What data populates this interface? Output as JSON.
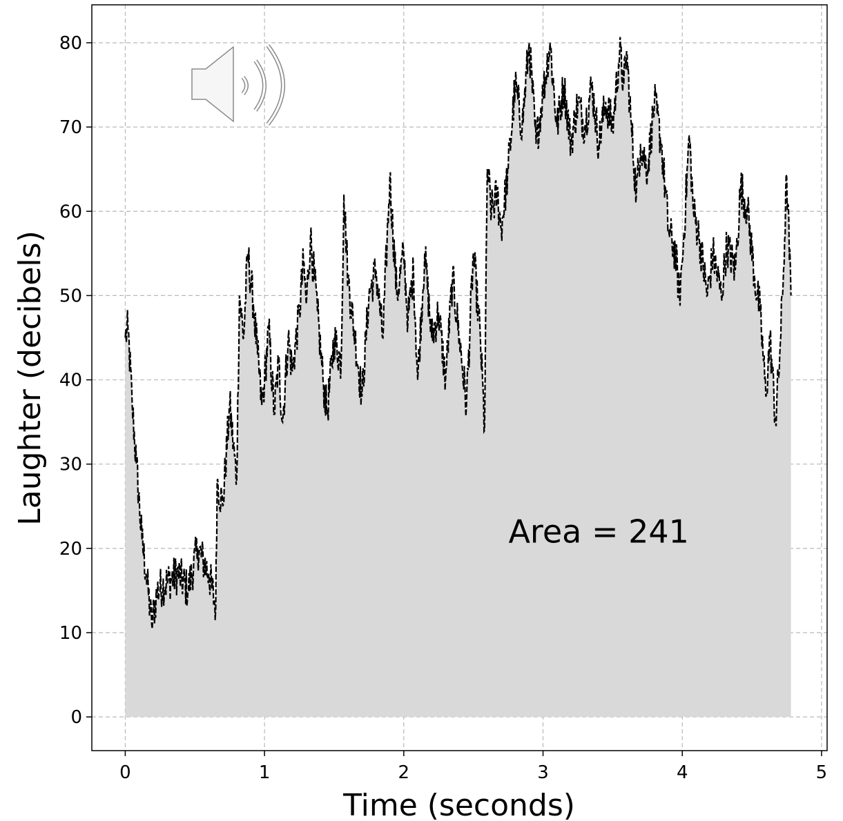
{
  "chart_data": {
    "type": "area",
    "title": "",
    "xlabel": "Time (seconds)",
    "ylabel": "Laughter (decibels)",
    "xlim": [
      -0.24,
      5.04
    ],
    "ylim": [
      -4,
      84.5
    ],
    "xticks": [
      0,
      1,
      2,
      3,
      4,
      5
    ],
    "yticks": [
      0,
      10,
      20,
      30,
      40,
      50,
      60,
      70,
      80
    ],
    "grid": true,
    "legend": "none",
    "line_style": "dashed",
    "line_color": "#000000",
    "fill_color": "#d9d9d9",
    "annotation": "Area = 241",
    "annotation_position": {
      "x": 3.4,
      "y": 22
    },
    "icon": "speaker-icon",
    "series": [
      {
        "x": [
          0,
          0.02,
          0.05,
          0.08,
          0.12,
          0.15,
          0.19,
          0.23,
          0.3,
          0.38,
          0.45,
          0.52,
          0.6,
          0.65,
          0.66,
          0.7,
          0.75,
          0.8,
          0.82,
          0.85,
          0.88,
          0.92,
          0.95,
          0.98,
          1.0,
          1.03,
          1.07,
          1.1,
          1.13,
          1.17,
          1.2,
          1.25,
          1.28,
          1.3,
          1.33,
          1.38,
          1.42,
          1.45,
          1.5,
          1.55,
          1.57,
          1.6,
          1.65,
          1.7,
          1.75,
          1.8,
          1.85,
          1.9,
          1.95,
          2.0,
          2.03,
          2.07,
          2.1,
          2.15,
          2.2,
          2.25,
          2.3,
          2.35,
          2.4,
          2.45,
          2.5,
          2.55,
          2.58,
          2.6,
          2.63,
          2.67,
          2.7,
          2.75,
          2.8,
          2.85,
          2.9,
          2.95,
          3.0,
          3.05,
          3.1,
          3.15,
          3.2,
          3.25,
          3.3,
          3.35,
          3.4,
          3.45,
          3.5,
          3.55,
          3.58,
          3.6,
          3.63,
          3.67,
          3.7,
          3.75,
          3.8,
          3.85,
          3.9,
          3.95,
          3.98,
          4.0,
          4.05,
          4.08,
          4.12,
          4.18,
          4.22,
          4.28,
          4.32,
          4.38,
          4.42,
          4.47,
          4.52,
          4.56,
          4.6,
          4.63,
          4.67,
          4.7,
          4.72,
          4.75,
          4.78
        ],
        "y": [
          45,
          46,
          37,
          30,
          21,
          17,
          11,
          15,
          16,
          17,
          15,
          20,
          17,
          13,
          28,
          25,
          37,
          28,
          50,
          45,
          55,
          49,
          43,
          37,
          40,
          46,
          36,
          42,
          35,
          45,
          41,
          48,
          54,
          49,
          57,
          48,
          40,
          36,
          45,
          42,
          62,
          52,
          45,
          38,
          50,
          53,
          45,
          64,
          50,
          55,
          47,
          53,
          40,
          55,
          45,
          48,
          40,
          52,
          45,
          37,
          55,
          45,
          34,
          65,
          60,
          62,
          58,
          65,
          75,
          70,
          80,
          68,
          74,
          80,
          70,
          75,
          68,
          73,
          70,
          75,
          68,
          73,
          70,
          79,
          75,
          79,
          71,
          62,
          68,
          65,
          73,
          68,
          58,
          55,
          50,
          54,
          69,
          60,
          57,
          50,
          55,
          50,
          56,
          53,
          63,
          60,
          52,
          48,
          38,
          45,
          35,
          43,
          50,
          64,
          50
        ]
      }
    ]
  }
}
